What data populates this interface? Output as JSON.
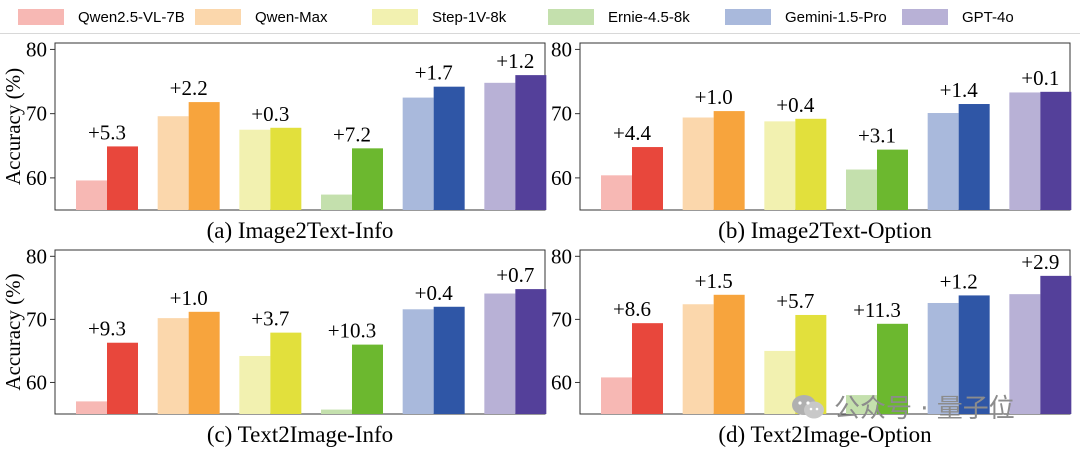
{
  "legend": [
    {
      "name": "Qwen2.5-VL-7B",
      "color": "#e8473c",
      "light": "#f7b8b4"
    },
    {
      "name": "Qwen-Max",
      "color": "#f7a43d",
      "light": "#fbd7ac"
    },
    {
      "name": "Step-1V-8k",
      "color": "#e2e03c",
      "light": "#f2f1b0"
    },
    {
      "name": "Ernie-4.5-8k",
      "color": "#6cb82f",
      "light": "#c4e0ad"
    },
    {
      "name": "Gemini-1.5-Pro",
      "color": "#2f56a6",
      "light": "#a9b9dc"
    },
    {
      "name": "GPT-4o",
      "color": "#54409a",
      "light": "#b8b1d6"
    }
  ],
  "watermark": "公众号 · 量子位",
  "chart_data": [
    {
      "type": "bar",
      "title": "(a) Image2Text-Info",
      "ylabel": "Accuracy (%)",
      "ylim": [
        55,
        81
      ],
      "yticks": [
        60,
        70,
        80
      ],
      "categories": [
        "Qwen2.5-VL-7B",
        "Qwen-Max",
        "Step-1V-8k",
        "Ernie-4.5-8k",
        "Gemini-1.5-Pro",
        "GPT-4o"
      ],
      "series": [
        {
          "values": [
            59.6,
            69.6,
            67.5,
            57.4,
            72.5,
            74.8
          ]
        },
        {
          "values": [
            64.9,
            71.8,
            67.8,
            64.6,
            74.2,
            76.0
          ]
        }
      ],
      "labels": [
        "+5.3",
        "+2.2",
        "+0.3",
        "+7.2",
        "+1.7",
        "+1.2"
      ]
    },
    {
      "type": "bar",
      "title": "(b) Image2Text-Option",
      "ylabel": "",
      "ylim": [
        55,
        81
      ],
      "yticks": [
        60,
        70,
        80
      ],
      "categories": [
        "Qwen2.5-VL-7B",
        "Qwen-Max",
        "Step-1V-8k",
        "Ernie-4.5-8k",
        "Gemini-1.5-Pro",
        "GPT-4o"
      ],
      "series": [
        {
          "values": [
            60.4,
            69.4,
            68.8,
            61.3,
            70.1,
            73.3
          ]
        },
        {
          "values": [
            64.8,
            70.4,
            69.2,
            64.4,
            71.5,
            73.4
          ]
        }
      ],
      "labels": [
        "+4.4",
        "+1.0",
        "+0.4",
        "+3.1",
        "+1.4",
        "+0.1"
      ]
    },
    {
      "type": "bar",
      "title": "(c) Text2Image-Info",
      "ylabel": "Accuracy (%)",
      "ylim": [
        55,
        81
      ],
      "yticks": [
        60,
        70,
        80
      ],
      "categories": [
        "Qwen2.5-VL-7B",
        "Qwen-Max",
        "Step-1V-8k",
        "Ernie-4.5-8k",
        "Gemini-1.5-Pro",
        "GPT-4o"
      ],
      "series": [
        {
          "values": [
            57.0,
            70.2,
            64.2,
            55.7,
            71.6,
            74.1
          ]
        },
        {
          "values": [
            66.3,
            71.2,
            67.9,
            66.0,
            72.0,
            74.8
          ]
        }
      ],
      "labels": [
        "+9.3",
        "+1.0",
        "+3.7",
        "+10.3",
        "+0.4",
        "+0.7"
      ]
    },
    {
      "type": "bar",
      "title": "(d) Text2Image-Option",
      "ylabel": "",
      "ylim": [
        55,
        81
      ],
      "yticks": [
        60,
        70,
        80
      ],
      "categories": [
        "Qwen2.5-VL-7B",
        "Qwen-Max",
        "Step-1V-8k",
        "Ernie-4.5-8k",
        "Gemini-1.5-Pro",
        "GPT-4o"
      ],
      "series": [
        {
          "values": [
            60.8,
            72.4,
            65.0,
            58.0,
            72.6,
            74.0
          ]
        },
        {
          "values": [
            69.4,
            73.9,
            70.7,
            69.3,
            73.8,
            76.9
          ]
        }
      ],
      "labels": [
        "+8.6",
        "+1.5",
        "+5.7",
        "+11.3",
        "+1.2",
        "+2.9"
      ]
    }
  ]
}
